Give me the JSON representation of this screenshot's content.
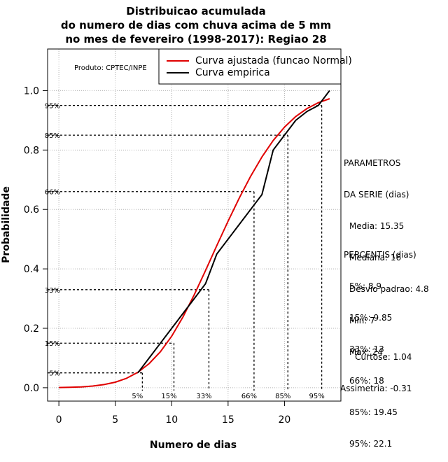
{
  "header": {
    "title_line1": "Distribuicao acumulada",
    "title_line2": "do numero de dias com chuva acima de 5 mm",
    "title_line3": "no mes de fevereiro (1998-2017): Regiao 28"
  },
  "product_label": "Produto: CPTEC/INPE",
  "chart_data": {
    "type": "line",
    "xlabel": "Numero de dias",
    "ylabel": "Probabilidade",
    "xlim": [
      -1,
      25
    ],
    "ylim": [
      -0.045,
      1.14
    ],
    "xticks": [
      "0",
      "5",
      "10",
      "15",
      "20"
    ],
    "xtick_values": [
      0,
      5,
      10,
      15,
      20
    ],
    "yticks": [
      "0.0",
      "0.2",
      "0.4",
      "0.6",
      "0.8",
      "1.0"
    ],
    "ytick_values": [
      0.0,
      0.2,
      0.4,
      0.6,
      0.8,
      1.0
    ],
    "grid": true,
    "legend_position": "top-right",
    "series": [
      {
        "name": "Curva ajustada (funcao Normal)",
        "color": "#e00000",
        "x": [
          0,
          1,
          2,
          3,
          4,
          5,
          6,
          7,
          8,
          9,
          10,
          11,
          12,
          13,
          14,
          15,
          16,
          17,
          18,
          19,
          20,
          21,
          22,
          23,
          24
        ],
        "values": [
          0.0007,
          0.0014,
          0.0029,
          0.0057,
          0.0106,
          0.0187,
          0.0318,
          0.0519,
          0.0811,
          0.1213,
          0.1737,
          0.2381,
          0.3128,
          0.3944,
          0.4783,
          0.5605,
          0.6392,
          0.7119,
          0.7767,
          0.832,
          0.877,
          0.9128,
          0.9397,
          0.9592,
          0.9728
        ]
      },
      {
        "name": "Curva empirica",
        "color": "#000000",
        "x": [
          7,
          9,
          10,
          12,
          13,
          14,
          15,
          16,
          17,
          18,
          19,
          20,
          21,
          22,
          23,
          24
        ],
        "values": [
          0.05,
          0.15,
          0.2,
          0.3,
          0.35,
          0.45,
          0.5,
          0.55,
          0.6,
          0.65,
          0.8,
          0.85,
          0.9,
          0.93,
          0.95,
          1.0
        ]
      }
    ],
    "percentile_lines": [
      {
        "label": "5%",
        "prob": 0.05,
        "value": 7.4
      },
      {
        "label": "15%",
        "prob": 0.15,
        "value": 10.2
      },
      {
        "label": "33%",
        "prob": 0.33,
        "value": 13.3
      },
      {
        "label": "66%",
        "prob": 0.66,
        "value": 17.3
      },
      {
        "label": "85%",
        "prob": 0.85,
        "value": 20.3
      },
      {
        "label": "95%",
        "prob": 0.95,
        "value": 23.3
      }
    ]
  },
  "parameters": {
    "heading1": "PARAMETROS",
    "heading2": "DA SERIE (dias)",
    "media": "Media: 15.35",
    "mediana": "Mediana: 16",
    "desvio": "Desvio padrao: 4.8",
    "min": "Min: 7",
    "max": "Max: 24"
  },
  "percentis": {
    "heading": "PERCENTIS (dias)",
    "p5": "5%: 8.9",
    "p15": "15%: 9.85",
    "p33": "33%: 13",
    "p66": "66%: 18",
    "p85": "85%: 19.45",
    "p95": "95%: 22.1"
  },
  "shape": {
    "curtose": "Curtose: 1.04",
    "assimetria": "Assimetria: -0.31"
  }
}
